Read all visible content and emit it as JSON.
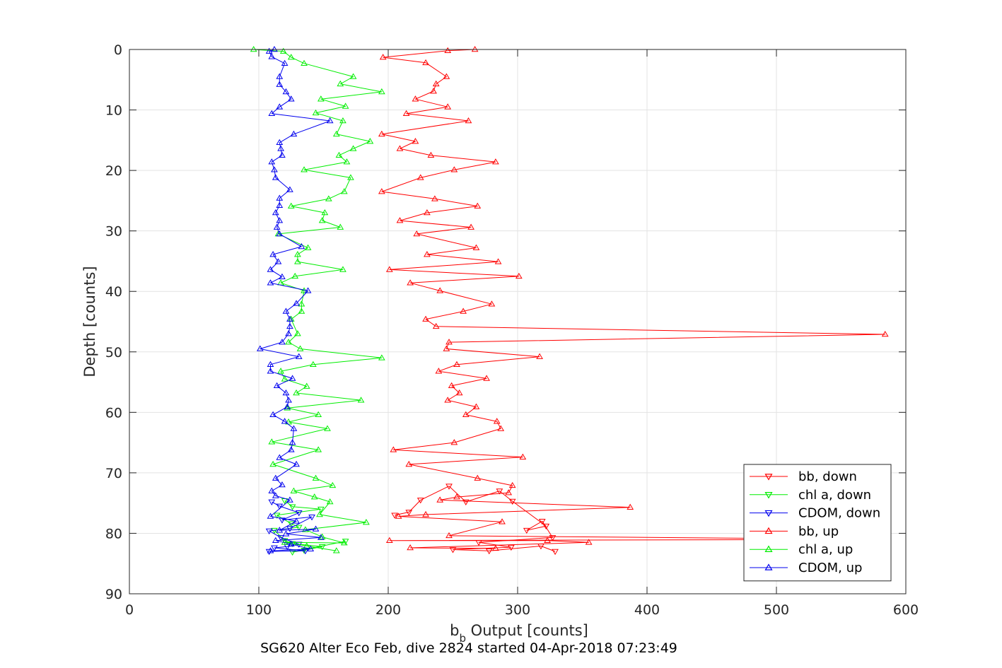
{
  "chart_data": {
    "type": "line",
    "xlabel_main": "b",
    "xlabel_sub": "b",
    "xlabel_rest": " Output [counts]",
    "ylabel": "Depth [counts]",
    "caption": "SG620 Alter Eco Feb, dive 2824 started 04-Apr-2018 07:23:49",
    "xlim": [
      0,
      600
    ],
    "ylim": [
      0,
      90
    ],
    "y_reversed": true,
    "grid": true,
    "xticks": [
      "0",
      "100",
      "200",
      "300",
      "400",
      "500",
      "600"
    ],
    "yticks": [
      "0",
      "10",
      "20",
      "30",
      "40",
      "50",
      "60",
      "70",
      "80",
      "90"
    ],
    "legend_position": "bottom-right",
    "series": [
      {
        "name": "bb, down",
        "color": "#ff0000",
        "marker": "triangle-down",
        "points": [
          [
            205,
            77
          ],
          [
            216,
            76.5
          ],
          [
            225,
            74.5
          ],
          [
            247,
            72.2
          ],
          [
            260,
            74.8
          ],
          [
            286,
            73
          ],
          [
            296,
            74.7
          ],
          [
            322,
            78.8
          ],
          [
            307,
            79.5
          ],
          [
            319,
            78
          ],
          [
            327,
            80.7
          ],
          [
            270,
            81.5
          ],
          [
            295,
            82.3
          ],
          [
            250,
            82.7
          ],
          [
            278,
            82.9
          ],
          [
            318,
            82.1
          ],
          [
            329,
            83
          ]
        ]
      },
      {
        "name": "chl a, down",
        "color": "#00ee00",
        "marker": "triangle-down",
        "points": [
          [
            120,
            74.6
          ],
          [
            126,
            75.6
          ],
          [
            148,
            76
          ],
          [
            114,
            77
          ],
          [
            125,
            78.4
          ],
          [
            131,
            79
          ],
          [
            112,
            79.5
          ],
          [
            120,
            81.2
          ],
          [
            126,
            81.7
          ],
          [
            149,
            82.2
          ],
          [
            135,
            82.8
          ],
          [
            126,
            83.1
          ],
          [
            167,
            81.3
          ]
        ]
      },
      {
        "name": "CDOM, down",
        "color": "#0000ee",
        "marker": "triangle-down",
        "points": [
          [
            110,
            74.8
          ],
          [
            116,
            75.5
          ],
          [
            131,
            76.6
          ],
          [
            118,
            77.8
          ],
          [
            141,
            77.3
          ],
          [
            124,
            79.2
          ],
          [
            108,
            79.6
          ],
          [
            117,
            80.7
          ],
          [
            131,
            81.8
          ],
          [
            122,
            82.2
          ],
          [
            112,
            82.4
          ],
          [
            136,
            82.9
          ],
          [
            108,
            83
          ]
        ]
      },
      {
        "name": "bb, up",
        "color": "#ff0000",
        "marker": "triangle-up",
        "points": [
          [
            267,
            0
          ],
          [
            246,
            0.2
          ],
          [
            196,
            1.3
          ],
          [
            229,
            2.2
          ],
          [
            245,
            4.5
          ],
          [
            237,
            5.7
          ],
          [
            235,
            6.9
          ],
          [
            221,
            8.2
          ],
          [
            246,
            9.5
          ],
          [
            214,
            10.6
          ],
          [
            262,
            11.8
          ],
          [
            195,
            14
          ],
          [
            221,
            15.2
          ],
          [
            209,
            16.4
          ],
          [
            233,
            17.5
          ],
          [
            283,
            18.6
          ],
          [
            251,
            19.9
          ],
          [
            225,
            21.2
          ],
          [
            195,
            23.5
          ],
          [
            236,
            24.7
          ],
          [
            269,
            25.9
          ],
          [
            230,
            27
          ],
          [
            209,
            28.3
          ],
          [
            264,
            29.4
          ],
          [
            222,
            30.5
          ],
          [
            268,
            32.8
          ],
          [
            230,
            33.9
          ],
          [
            285,
            35.1
          ],
          [
            201,
            36.4
          ],
          [
            301,
            37.5
          ],
          [
            217,
            38.6
          ],
          [
            240,
            39.9
          ],
          [
            280,
            42.1
          ],
          [
            258,
            43.3
          ],
          [
            229,
            44.6
          ],
          [
            237,
            45.8
          ],
          [
            584,
            47.1
          ],
          [
            247,
            48.4
          ],
          [
            245,
            49.5
          ],
          [
            317,
            50.8
          ],
          [
            253,
            52.1
          ],
          [
            239,
            53.2
          ],
          [
            276,
            54.4
          ],
          [
            249,
            55.6
          ],
          [
            255,
            56.8
          ],
          [
            246,
            58
          ],
          [
            268,
            59.1
          ],
          [
            260,
            60.4
          ],
          [
            284,
            61.5
          ],
          [
            287,
            62.7
          ],
          [
            251,
            65
          ],
          [
            204,
            66.2
          ],
          [
            304,
            67.4
          ],
          [
            216,
            68.6
          ],
          [
            269,
            70.9
          ],
          [
            296,
            72.1
          ],
          [
            293,
            73.3
          ],
          [
            253,
            74
          ],
          [
            240,
            74.5
          ],
          [
            387,
            75.7
          ],
          [
            229,
            76.9
          ],
          [
            208,
            77.2
          ],
          [
            288,
            78.1
          ],
          [
            247,
            80.4
          ],
          [
            582,
            81
          ],
          [
            201,
            81.2
          ],
          [
            323,
            81.2
          ],
          [
            355,
            81.5
          ],
          [
            217,
            82.4
          ],
          [
            283,
            82.5
          ]
        ]
      },
      {
        "name": "chl a, up",
        "color": "#00ee00",
        "marker": "triangle-up",
        "points": [
          [
            96,
            0
          ],
          [
            119,
            0.3
          ],
          [
            125,
            1.3
          ],
          [
            135,
            2.3
          ],
          [
            173,
            4.5
          ],
          [
            163,
            5.7
          ],
          [
            195,
            7
          ],
          [
            148,
            8.2
          ],
          [
            167,
            9.4
          ],
          [
            144,
            10.5
          ],
          [
            165,
            11.8
          ],
          [
            160,
            14
          ],
          [
            186,
            15.2
          ],
          [
            173,
            16.4
          ],
          [
            162,
            17.5
          ],
          [
            168,
            18.6
          ],
          [
            135,
            19.9
          ],
          [
            171,
            21.2
          ],
          [
            166,
            23.5
          ],
          [
            154,
            24.7
          ],
          [
            125,
            25.9
          ],
          [
            151,
            27
          ],
          [
            149,
            28.3
          ],
          [
            163,
            29.4
          ],
          [
            115,
            30.5
          ],
          [
            138,
            32.8
          ],
          [
            130,
            33.9
          ],
          [
            130,
            35.1
          ],
          [
            165,
            36.4
          ],
          [
            128,
            37.5
          ],
          [
            117,
            38.6
          ],
          [
            135,
            39.9
          ],
          [
            133,
            42.1
          ],
          [
            133,
            43.3
          ],
          [
            125,
            44.6
          ],
          [
            130,
            47
          ],
          [
            123,
            48.4
          ],
          [
            132,
            49.5
          ],
          [
            195,
            51
          ],
          [
            142,
            52.1
          ],
          [
            117,
            53.2
          ],
          [
            120,
            54.5
          ],
          [
            137,
            55.7
          ],
          [
            129,
            56.8
          ],
          [
            179,
            58
          ],
          [
            122,
            59.3
          ],
          [
            146,
            60.4
          ],
          [
            123,
            61.6
          ],
          [
            153,
            62.7
          ],
          [
            110,
            64.9
          ],
          [
            146,
            66.2
          ],
          [
            111,
            68.6
          ],
          [
            144,
            70.9
          ],
          [
            157,
            72.1
          ],
          [
            127,
            73
          ],
          [
            143,
            74
          ],
          [
            155,
            74.8
          ],
          [
            147,
            76.9
          ],
          [
            183,
            78.2
          ],
          [
            136,
            79.4
          ],
          [
            149,
            80.6
          ],
          [
            166,
            81.6
          ],
          [
            120,
            81.5
          ],
          [
            137,
            82.1
          ],
          [
            160,
            82.9
          ]
        ]
      },
      {
        "name": "CDOM, up",
        "color": "#0000ee",
        "marker": "triangle-up",
        "points": [
          [
            112,
            0
          ],
          [
            108,
            0.3
          ],
          [
            110,
            1.2
          ],
          [
            120,
            2.3
          ],
          [
            116,
            4.5
          ],
          [
            116,
            5.8
          ],
          [
            121,
            7
          ],
          [
            125,
            8.2
          ],
          [
            116,
            9.5
          ],
          [
            110,
            10.6
          ],
          [
            155,
            11.8
          ],
          [
            127,
            14
          ],
          [
            116,
            15.4
          ],
          [
            117,
            16.4
          ],
          [
            118,
            17.5
          ],
          [
            110,
            18.6
          ],
          [
            112,
            19.9
          ],
          [
            113,
            21.2
          ],
          [
            124,
            23.2
          ],
          [
            116,
            24.6
          ],
          [
            116,
            25.8
          ],
          [
            113,
            27
          ],
          [
            116,
            28.3
          ],
          [
            114,
            29.4
          ],
          [
            116,
            30.5
          ],
          [
            133,
            32.6
          ],
          [
            111,
            33.9
          ],
          [
            115,
            35.1
          ],
          [
            109,
            36.4
          ],
          [
            118,
            37.6
          ],
          [
            109,
            38.6
          ],
          [
            138,
            39.9
          ],
          [
            129,
            42
          ],
          [
            121,
            43.3
          ],
          [
            124,
            44.6
          ],
          [
            124,
            45.8
          ],
          [
            123,
            47
          ],
          [
            118,
            48.4
          ],
          [
            101,
            49.5
          ],
          [
            131,
            50.8
          ],
          [
            109,
            52.1
          ],
          [
            109,
            53.2
          ],
          [
            126,
            54.4
          ],
          [
            114,
            55.6
          ],
          [
            121,
            56.8
          ],
          [
            123,
            58
          ],
          [
            122,
            59.1
          ],
          [
            111,
            60.4
          ],
          [
            120,
            61.5
          ],
          [
            127,
            62.7
          ],
          [
            126,
            65
          ],
          [
            125,
            66.2
          ],
          [
            116,
            67.5
          ],
          [
            129,
            68.6
          ],
          [
            113,
            70.9
          ],
          [
            118,
            72
          ],
          [
            110,
            73
          ],
          [
            113,
            73.8
          ],
          [
            124,
            74.5
          ],
          [
            109,
            77.2
          ],
          [
            129,
            78
          ],
          [
            116,
            79.5
          ],
          [
            144,
            79.3
          ],
          [
            121,
            80.1
          ],
          [
            148,
            80.7
          ],
          [
            113,
            81.2
          ],
          [
            125,
            81.8
          ],
          [
            140,
            82.6
          ],
          [
            109,
            82.9
          ]
        ]
      }
    ]
  }
}
